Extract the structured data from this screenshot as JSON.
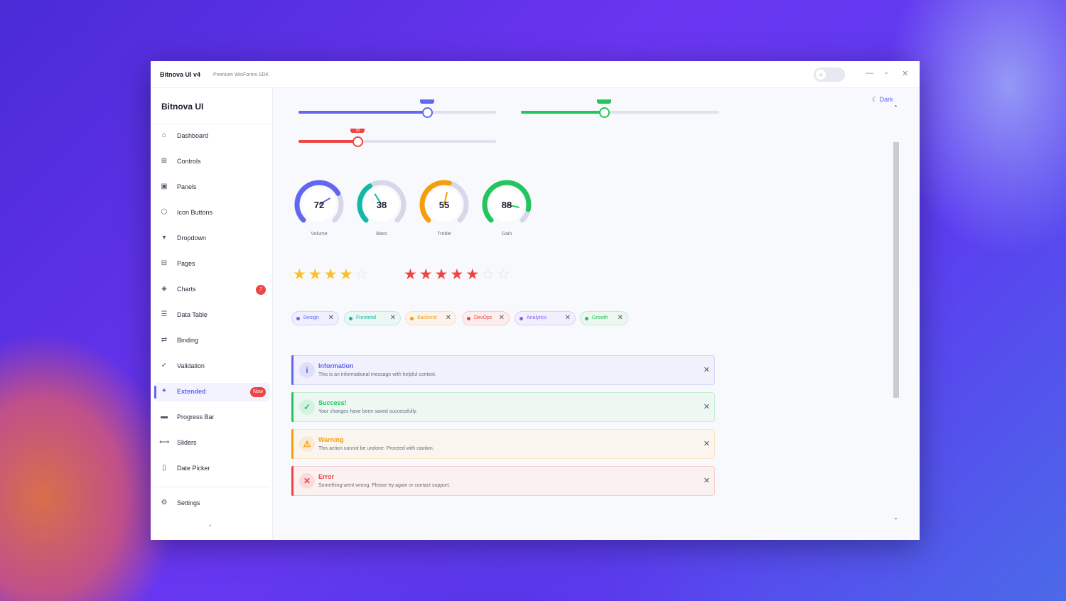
{
  "window": {
    "title": "Bitnova UI  v4",
    "subtitle": "Premium WinForms SDK",
    "theme_toggle_icon": "sun-icon",
    "minimize": "—",
    "maximize": "▫",
    "close": "✕"
  },
  "sidebar": {
    "brand": "Bitnova UI",
    "items": [
      {
        "label": "Dashboard",
        "icon": "⌂"
      },
      {
        "label": "Controls",
        "icon": "⊞"
      },
      {
        "label": "Panels",
        "icon": "▣"
      },
      {
        "label": "Icon Buttons",
        "icon": "⬡"
      },
      {
        "label": "Dropdown",
        "icon": "▾"
      },
      {
        "label": "Pages",
        "icon": "⊟"
      },
      {
        "label": "Charts",
        "icon": "◈",
        "badge": "7"
      },
      {
        "label": "Data Table",
        "icon": "☰"
      },
      {
        "label": "Binding",
        "icon": "⇄"
      },
      {
        "label": "Validation",
        "icon": "✓"
      },
      {
        "label": "Extended",
        "icon": "✦",
        "badge": "New",
        "active": true
      },
      {
        "label": "Progress Bar",
        "icon": "▬"
      },
      {
        "label": "Sliders",
        "icon": "⟷"
      },
      {
        "label": "Date Picker",
        "icon": "▯"
      }
    ],
    "settings": {
      "label": "Settings",
      "icon": "⚙"
    },
    "collapse": "‹"
  },
  "main": {
    "dark_label": "☾ Dark",
    "sliders": [
      {
        "value": 65,
        "color": "#6366f1"
      },
      {
        "value": 42,
        "color": "#22c55e"
      },
      {
        "value": 30,
        "color": "#ef4444",
        "tooltip": "30"
      }
    ],
    "gauges": [
      {
        "label": "Volume",
        "value": 72,
        "color": "#6366f1"
      },
      {
        "label": "Bass",
        "value": 38,
        "color": "#14b8a6"
      },
      {
        "label": "Treble",
        "value": 55,
        "color": "#f59e0b"
      },
      {
        "label": "Gain",
        "value": 88,
        "color": "#22c55e"
      }
    ],
    "ratings": [
      {
        "value": 4,
        "max": 5,
        "color": "#fbbf24"
      },
      {
        "value": 5,
        "max": 7,
        "color": "#ef4444"
      }
    ],
    "chips": [
      {
        "label": "Design",
        "color": "#6366f1",
        "bg": "#eef0fd"
      },
      {
        "label": "Frontend",
        "color": "#14b8a6",
        "bg": "#eaf7f3"
      },
      {
        "label": "Backend",
        "color": "#f59e0b",
        "bg": "#fdf3ea"
      },
      {
        "label": "DevOps",
        "color": "#ef4444",
        "bg": "#fdeeee"
      },
      {
        "label": "Analytics",
        "color": "#8b5cf6",
        "bg": "#f1eefd"
      },
      {
        "label": "Growth",
        "color": "#22c55e",
        "bg": "#ebf7ef"
      }
    ],
    "alerts": [
      {
        "title": "Information",
        "message": "This is an informational message with helpful context.",
        "icon": "i",
        "color": "#6366f1",
        "bg": "#f0f1fd"
      },
      {
        "title": "Success!",
        "message": "Your changes have been saved successfully.",
        "icon": "✓",
        "color": "#22c55e",
        "bg": "#eef8f2"
      },
      {
        "title": "Warning",
        "message": "This action cannot be undone. Proceed with caution.",
        "icon": "⚠",
        "color": "#f59e0b",
        "bg": "#fbf5f0"
      },
      {
        "title": "Error",
        "message": "Something went wrong. Please try again or contact support.",
        "icon": "✕",
        "color": "#ef4444",
        "bg": "#fbf1f1"
      }
    ]
  }
}
